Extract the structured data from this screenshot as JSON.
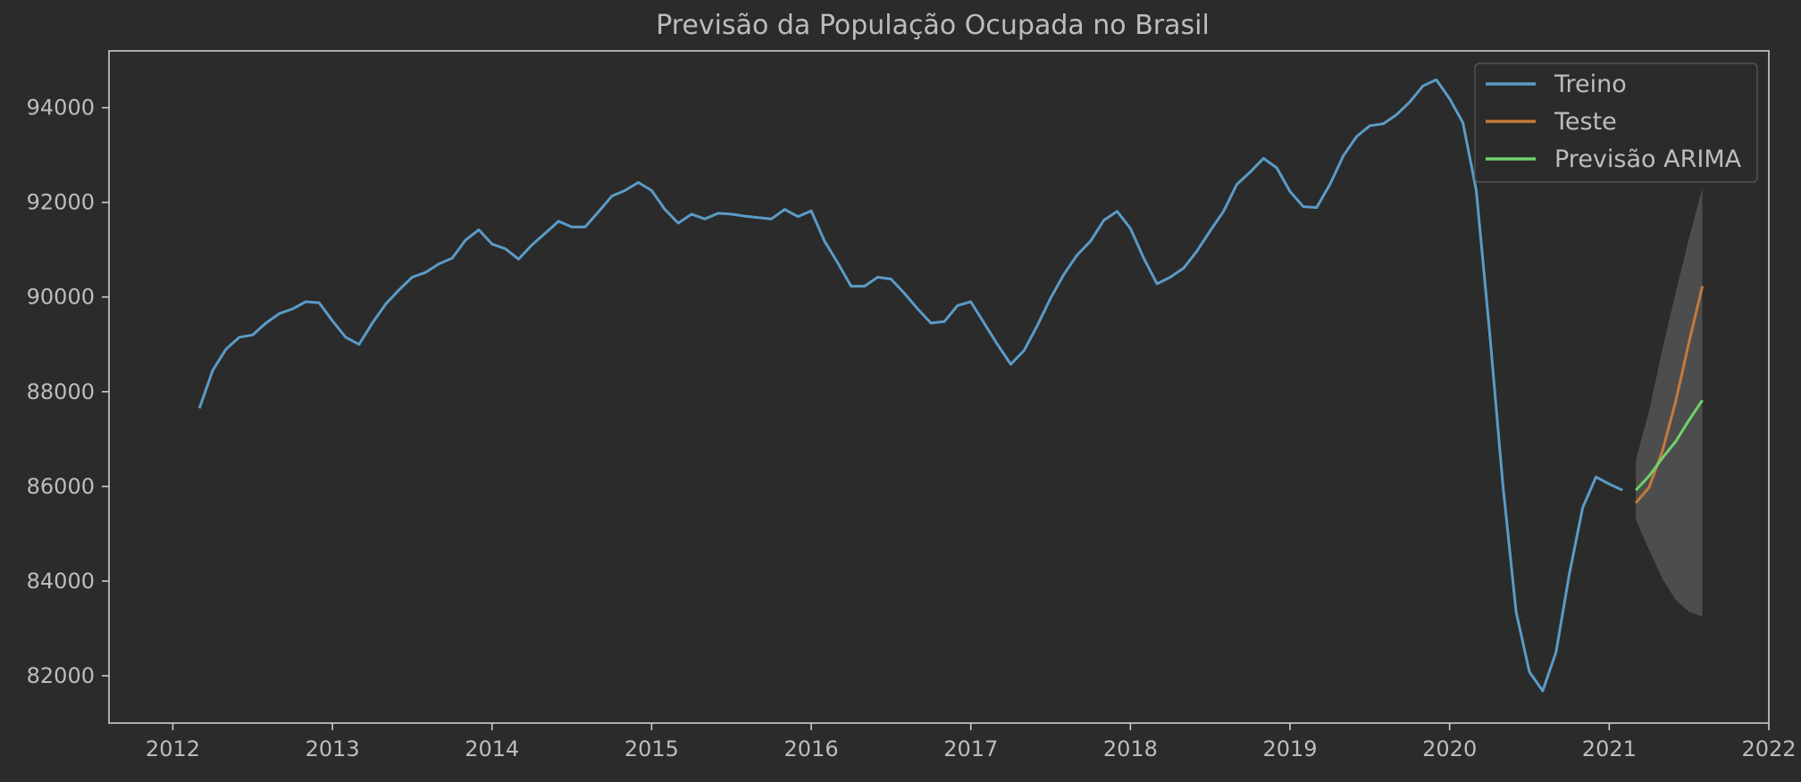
{
  "chart_data": {
    "type": "line",
    "title": "Previsão da População Ocupada no Brasil",
    "xlabel": "",
    "ylabel": "",
    "xlim": [
      2011.6,
      2022.0
    ],
    "ylim": [
      81000,
      95200
    ],
    "grid": false,
    "legend_position": "top-right",
    "x_ticks": [
      "2012",
      "2013",
      "2014",
      "2015",
      "2016",
      "2017",
      "2018",
      "2019",
      "2020",
      "2021",
      "2022"
    ],
    "y_ticks": [
      "82000",
      "84000",
      "86000",
      "88000",
      "90000",
      "92000",
      "94000"
    ],
    "legend": [
      "Treino",
      "Teste",
      "Previsão ARIMA"
    ],
    "colors": {
      "background": "#2b2b2b",
      "axes": "#cccccc",
      "text": "#bdbdbd",
      "treino": "#5b9bc7",
      "teste": "#c57a3c",
      "previsao": "#6ed36b",
      "confidence": "#5a5a5a"
    },
    "series": [
      {
        "name": "Treino",
        "x": [
          "2012-03",
          "2012-04",
          "2012-05",
          "2012-06",
          "2012-07",
          "2012-08",
          "2012-09",
          "2012-10",
          "2012-11",
          "2012-12",
          "2013-01",
          "2013-02",
          "2013-03",
          "2013-04",
          "2013-05",
          "2013-06",
          "2013-07",
          "2013-08",
          "2013-09",
          "2013-10",
          "2013-11",
          "2013-12",
          "2014-01",
          "2014-02",
          "2014-03",
          "2014-04",
          "2014-05",
          "2014-06",
          "2014-07",
          "2014-08",
          "2014-09",
          "2014-10",
          "2014-11",
          "2014-12",
          "2015-01",
          "2015-02",
          "2015-03",
          "2015-04",
          "2015-05",
          "2015-06",
          "2015-07",
          "2015-08",
          "2015-09",
          "2015-10",
          "2015-11",
          "2015-12",
          "2016-01",
          "2016-02",
          "2016-03",
          "2016-04",
          "2016-05",
          "2016-06",
          "2016-07",
          "2016-08",
          "2016-09",
          "2016-10",
          "2016-11",
          "2016-12",
          "2017-01",
          "2017-02",
          "2017-03",
          "2017-04",
          "2017-05",
          "2017-06",
          "2017-07",
          "2017-08",
          "2017-09",
          "2017-10",
          "2017-11",
          "2017-12",
          "2018-01",
          "2018-02",
          "2018-03",
          "2018-04",
          "2018-05",
          "2018-06",
          "2018-07",
          "2018-08",
          "2018-09",
          "2018-10",
          "2018-11",
          "2018-12",
          "2019-01",
          "2019-02",
          "2019-03",
          "2019-04",
          "2019-05",
          "2019-06",
          "2019-07",
          "2019-08",
          "2019-09",
          "2019-10",
          "2019-11",
          "2019-12",
          "2020-01",
          "2020-02",
          "2020-03",
          "2020-04",
          "2020-05",
          "2020-06",
          "2020-07",
          "2020-08",
          "2020-09",
          "2020-10",
          "2020-11",
          "2020-12",
          "2021-01",
          "2021-02"
        ],
        "values": [
          87650,
          88450,
          88900,
          89150,
          89200,
          89450,
          89650,
          89750,
          89900,
          89880,
          89500,
          89150,
          89000,
          89450,
          89850,
          90150,
          90420,
          90520,
          90700,
          90820,
          91200,
          91420,
          91120,
          91020,
          90800,
          91100,
          91350,
          91600,
          91480,
          91480,
          91800,
          92130,
          92250,
          92420,
          92250,
          91850,
          91560,
          91750,
          91650,
          91770,
          91750,
          91710,
          91680,
          91650,
          91850,
          91700,
          91820,
          91180,
          90720,
          90230,
          90230,
          90420,
          90380,
          90080,
          89750,
          89450,
          89480,
          89820,
          89900,
          89450,
          89000,
          88580,
          88870,
          89400,
          89980,
          90480,
          90890,
          91180,
          91620,
          91810,
          91450,
          90820,
          90280,
          90420,
          90610,
          90970,
          91400,
          91810,
          92380,
          92640,
          92930,
          92730,
          92230,
          91910,
          91890,
          92380,
          92980,
          93390,
          93620,
          93660,
          93850,
          94120,
          94460,
          94590,
          94190,
          93680,
          92250,
          89270,
          86050,
          83350,
          82080,
          81680,
          82500,
          84150,
          85550,
          86200,
          86050,
          85920
        ]
      },
      {
        "name": "Teste",
        "x": [
          "2021-03",
          "2021-04",
          "2021-05",
          "2021-06",
          "2021-07",
          "2021-08"
        ],
        "values": [
          85650,
          85980,
          86750,
          87800,
          89050,
          90230
        ]
      },
      {
        "name": "Previsão ARIMA",
        "x": [
          "2021-03",
          "2021-04",
          "2021-05",
          "2021-06",
          "2021-07",
          "2021-08"
        ],
        "values": [
          85920,
          86220,
          86600,
          86950,
          87400,
          87820
        ],
        "lower": [
          85300,
          84650,
          84050,
          83600,
          83350,
          83250
        ],
        "upper": [
          86550,
          87600,
          88900,
          90100,
          91250,
          92300
        ]
      }
    ]
  }
}
